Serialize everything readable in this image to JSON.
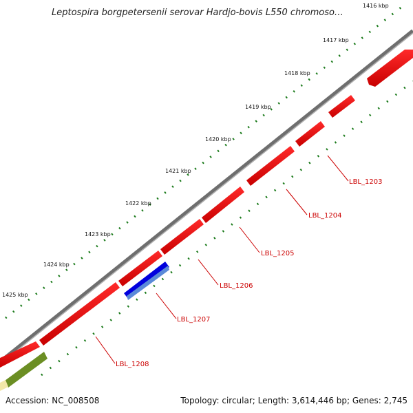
{
  "title": "Leptospira borgpetersenii serovar Hardjo-bovis L550 chromoso…",
  "footer": {
    "accession": "Accession: NC_008508",
    "summary": "Topology: circular; Length: 3,614,446 bp; Genes: 2,745"
  },
  "ticks": [
    "1416 kbp",
    "1417 kbp",
    "1418 kbp",
    "1419 kbp",
    "1420 kbp",
    "1421 kbp",
    "1422 kbp",
    "1423 kbp",
    "1424 kbp",
    "1425 kbp"
  ],
  "genes": [
    {
      "label": "LBL_1203",
      "color": "#ee0000"
    },
    {
      "label": "LBL_1204",
      "color": "#ee0000"
    },
    {
      "label": "LBL_1205",
      "color": "#ee0000"
    },
    {
      "label": "LBL_1206",
      "color": "#ee0000"
    },
    {
      "label": "LBL_1207",
      "color": "#ee0000"
    },
    {
      "label": "LBL_1208",
      "color": "#ee0000"
    }
  ],
  "colors": {
    "cds": "#ee0000",
    "backbone": "#808080",
    "highlight_blue": "#0000dd",
    "highlight_green": "#6b8e23",
    "tick_green": "#1a7a1a"
  }
}
